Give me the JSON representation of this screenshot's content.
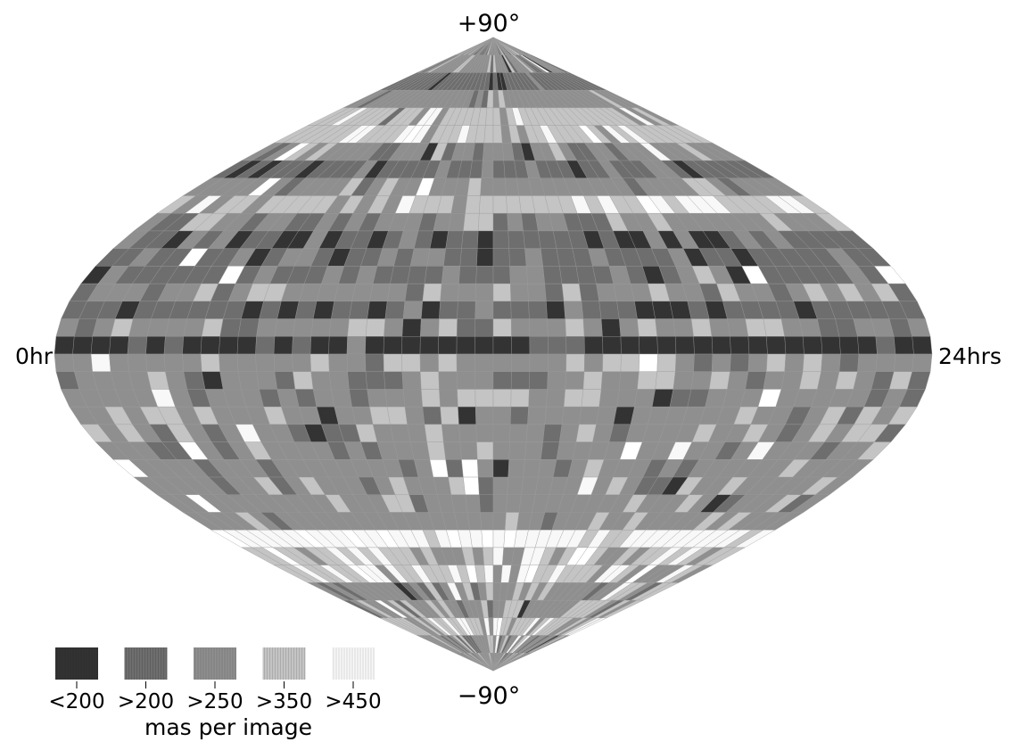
{
  "map": {
    "type": "sinusoidal-equal-area sky map",
    "value_unit": "mas per image",
    "binning": {
      "dec_band_deg": 5,
      "ra_cell_hours": 0.5
    },
    "labels": {
      "north": "+90°",
      "south": "−90°",
      "ra_start": "0hr",
      "ra_end": "24hrs"
    },
    "legend": {
      "caption": "mas per image",
      "classes": [
        {
          "label": "<200",
          "color": "#333333"
        },
        {
          "label": ">200",
          "color": "#6e6e6e"
        },
        {
          "label": ">250",
          "color": "#8f8f8f"
        },
        {
          "label": ">350",
          "color": "#c4c4c4"
        },
        {
          "label": ">450",
          "color": "#f8f8f8"
        }
      ]
    },
    "colors": {
      "background": "#ffffff",
      "grid_line": "#9a9a9a",
      "blank_cell": "#ffffff",
      "ink": "#000000"
    },
    "dec_bands": [
      {
        "dec": 87.5,
        "base": 2,
        "var": 0.45
      },
      {
        "dec": 82.5,
        "base": 2,
        "var": 0.35
      },
      {
        "dec": 77.5,
        "base": 1,
        "var": 0.25
      },
      {
        "dec": 72.5,
        "base": 2,
        "var": 0.1
      },
      {
        "dec": 67.5,
        "base": 3,
        "var": 0.25
      },
      {
        "dec": 62.5,
        "base": 3,
        "var": 0.4
      },
      {
        "dec": 57.5,
        "base": 2,
        "var": 0.35
      },
      {
        "dec": 52.5,
        "base": 1,
        "var": 0.35
      },
      {
        "dec": 47.5,
        "base": 2,
        "var": 0.35
      },
      {
        "dec": 42.5,
        "base": 3,
        "var": 0.4
      },
      {
        "dec": 37.5,
        "base": 2,
        "var": 0.4
      },
      {
        "dec": 32.5,
        "base": 1,
        "var": 0.45
      },
      {
        "dec": 27.5,
        "base": 1,
        "var": 0.35
      },
      {
        "dec": 22.5,
        "base": 1,
        "var": 0.45
      },
      {
        "dec": 17.5,
        "base": 2,
        "var": 0.45
      },
      {
        "dec": 12.5,
        "base": 1,
        "var": 0.4
      },
      {
        "dec": 7.5,
        "base": 2,
        "var": 0.4
      },
      {
        "dec": 2.5,
        "base": 0,
        "var": 0.25
      },
      {
        "dec": -2.5,
        "base": 2,
        "var": 0.4
      },
      {
        "dec": -7.5,
        "base": 2,
        "var": 0.4
      },
      {
        "dec": -12.5,
        "base": 2,
        "var": 0.4
      },
      {
        "dec": -17.5,
        "base": 2,
        "var": 0.4
      },
      {
        "dec": -22.5,
        "base": 2,
        "var": 0.4
      },
      {
        "dec": -27.5,
        "base": 2,
        "var": 0.35
      },
      {
        "dec": -32.5,
        "base": 2,
        "var": 0.3
      },
      {
        "dec": -37.5,
        "base": 2,
        "var": 0.35
      },
      {
        "dec": -42.5,
        "base": 2,
        "var": 0.3
      },
      {
        "dec": -47.5,
        "base": 2,
        "var": 0.25
      },
      {
        "dec": -52.5,
        "base": 4,
        "var": 0.4
      },
      {
        "dec": -57.5,
        "base": 3,
        "var": 0.45
      },
      {
        "dec": -62.5,
        "base": 3,
        "var": 0.45
      },
      {
        "dec": -67.5,
        "base": 2,
        "var": 0.45
      },
      {
        "dec": -72.5,
        "base": 2,
        "var": 0.45
      },
      {
        "dec": -77.5,
        "base": 3,
        "var": 0.45
      },
      {
        "dec": -82.5,
        "base": 2,
        "var": 0.45
      },
      {
        "dec": -87.5,
        "base": 2,
        "var": 0.45
      }
    ]
  }
}
